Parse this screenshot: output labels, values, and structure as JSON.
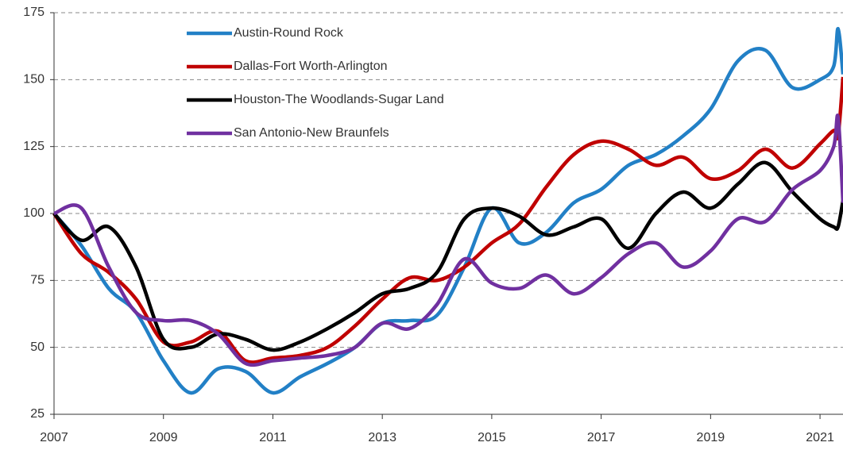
{
  "chart_data": {
    "type": "line",
    "x": [
      2007,
      2007.5,
      2008,
      2008.5,
      2009,
      2009.5,
      2010,
      2010.5,
      2011,
      2011.5,
      2012,
      2012.5,
      2013,
      2013.5,
      2014,
      2014.5,
      2015,
      2015.5,
      2016,
      2016.5,
      2017,
      2017.5,
      2018,
      2018.5,
      2019,
      2019.5,
      2020,
      2020.5,
      2021,
      2021.25,
      2021.33,
      2021.42
    ],
    "series": [
      {
        "name": "Austin-Round Rock",
        "color": "#2280c6",
        "values": [
          100,
          88,
          72,
          63,
          45,
          33,
          42,
          41,
          33,
          39,
          44,
          50,
          59,
          60,
          62,
          80,
          102,
          89,
          93,
          104,
          109,
          118,
          122,
          129,
          139,
          157,
          161,
          147,
          150,
          155,
          169,
          152
        ]
      },
      {
        "name": "Dallas-Fort Worth-Arlington",
        "color": "#c00000",
        "values": [
          100,
          85,
          78,
          68,
          52,
          52,
          56,
          45,
          46,
          47,
          50,
          58,
          68,
          76,
          75,
          80,
          89,
          96,
          110,
          122,
          127,
          124,
          118,
          121,
          113,
          116,
          124,
          117,
          126,
          131,
          129,
          151
        ]
      },
      {
        "name": "Houston-The Woodlands-Sugar Land",
        "color": "#000000",
        "values": [
          100,
          90,
          95,
          80,
          53,
          50,
          55,
          53,
          49,
          52,
          57,
          63,
          70,
          72,
          78,
          98,
          102,
          99,
          92,
          95,
          98,
          87,
          100,
          108,
          102,
          111,
          119,
          108,
          98,
          95,
          95,
          105
        ]
      },
      {
        "name": "San Antonio-New Braunfels",
        "color": "#7030a0",
        "values": [
          100,
          102,
          80,
          63,
          60,
          60,
          55,
          44,
          45,
          46,
          47,
          50,
          59,
          57,
          66,
          83,
          74,
          72,
          77,
          70,
          76,
          85,
          89,
          80,
          86,
          98,
          97,
          109,
          116,
          125,
          136,
          104
        ]
      }
    ],
    "xlim": [
      2007,
      2021.42
    ],
    "xticks": [
      2007,
      2009,
      2011,
      2013,
      2015,
      2017,
      2019,
      2021
    ],
    "ylim": [
      25,
      175
    ],
    "yticks": [
      25,
      50,
      75,
      100,
      125,
      150,
      175
    ],
    "grid": true
  }
}
